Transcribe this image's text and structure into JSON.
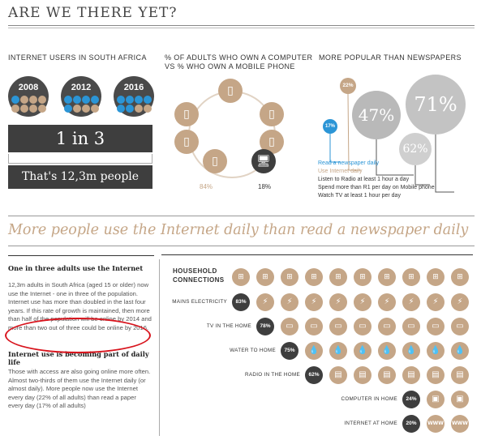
{
  "title": "ARE WE THERE YET?",
  "internet_users": {
    "heading": "INTERNET USERS IN SOUTH AFRICA",
    "years": [
      {
        "year": "2008",
        "blue_dots": 1,
        "tan_dots": 7
      },
      {
        "year": "2012",
        "blue_dots": 5,
        "tan_dots": 3
      },
      {
        "year": "2016",
        "blue_dots": 6,
        "tan_dots": 2
      }
    ],
    "ratio": "1 in 3",
    "people": "That's 12,3m people"
  },
  "computer_phone": {
    "heading_line1": "% OF ADULTS WHO OWN A COMPUTER",
    "heading_line2": "VS % WHO OWN A MOBILE PHONE",
    "phone_pct": "84%",
    "computer_pct": "18%"
  },
  "newspapers": {
    "heading": "MORE POPULAR THAN NEWSPAPERS",
    "bubbles": [
      {
        "value": "22%"
      },
      {
        "value": "47%"
      },
      {
        "value": "71%"
      },
      {
        "value": "62%"
      },
      {
        "value": "17%"
      }
    ],
    "legend": [
      {
        "label": "Read a newspaper daily",
        "color": "#2b95d6"
      },
      {
        "label": "Use Internet daily",
        "color": "#c5a687"
      },
      {
        "label": "Listen to Radio at least 1 hour a day",
        "color": "#333333"
      },
      {
        "label": "Spend more than R1 per day on Mobile phone",
        "color": "#333333"
      },
      {
        "label": "Watch TV at least 1 hour per day",
        "color": "#333333"
      }
    ]
  },
  "headline": "More people use the Internet daily than read a newspaper daily",
  "article": {
    "subhead1": "One in three adults use the Internet",
    "para1": "12,3m adults in South Africa (aged 15 or older) now use the Internet - one in three of the population. Internet use has more than doubled in the last four years. If this rate of growth is maintained, then more than half of the population will be online by 2014 and more than two out of three could be online by 2016.",
    "subhead2": "Internet use is becoming part of daily life",
    "para2": "Those with access are also going online more often. Almost two-thirds of them use the Internet daily (or almost daily). More people now use the Internet every day (22% of all adults) than read a paper every day (17% of all adults)"
  },
  "household": {
    "heading_line1": "HOUSEHOLD",
    "heading_line2": "CONNECTIONS",
    "rows": [
      {
        "label": "MAINS ELECTRICITY",
        "pct": "83%",
        "icon": "lightning-icon",
        "glyph": "⚡"
      },
      {
        "label": "TV IN THE HOME",
        "pct": "78%",
        "icon": "tv-icon",
        "glyph": "▭"
      },
      {
        "label": "WATER TO HOME",
        "pct": "75%",
        "icon": "water-drop-icon",
        "glyph": "💧"
      },
      {
        "label": "RADIO IN THE HOME",
        "pct": "62%",
        "icon": "radio-icon",
        "glyph": "▤"
      },
      {
        "label": "COMPUTER IN HOME",
        "pct": "24%",
        "icon": "computer-icon",
        "glyph": "▣"
      },
      {
        "label": "INTERNET AT HOME",
        "pct": "20%",
        "icon": "www-icon",
        "glyph": "WWW"
      }
    ],
    "top_icon": "socket-icon"
  },
  "colors": {
    "tan": "#c5a687",
    "dark": "#3e3e3e",
    "blue": "#2b95d6",
    "gray": "#c9c9c9",
    "annotation": "#d8141d"
  }
}
